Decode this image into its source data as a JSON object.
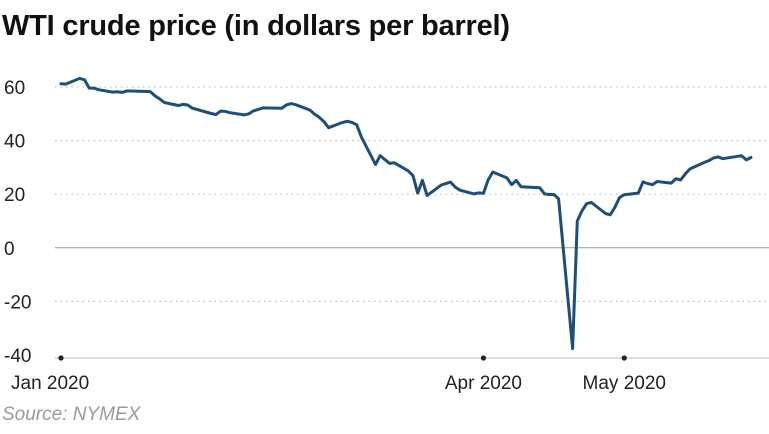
{
  "title": "WTI crude price (in dollars per barrel)",
  "source": "Source: NYMEX",
  "colors": {
    "line": "#1f4e79",
    "grid": "#bdbdbd",
    "zero": "#9a9a9a",
    "text": "#222222"
  },
  "chart_data": {
    "type": "line",
    "title": "WTI crude price (in dollars per barrel)",
    "xlabel": "",
    "ylabel": "",
    "ylim": [
      -40,
      60
    ],
    "yticks": [
      60,
      40,
      20,
      0,
      -20,
      -40
    ],
    "ytick_labels": [
      "60",
      "40",
      "20",
      "0",
      "-20",
      "-40"
    ],
    "xticks": [
      "2020-01-02",
      "2020-04-01",
      "2020-05-01"
    ],
    "xtick_labels": [
      "Jan 2020",
      "Apr 2020",
      "May 2020"
    ],
    "xlim": [
      "2020-01-02",
      "2020-05-28"
    ],
    "grid": true,
    "series": [
      {
        "x": [
          "2020-01-02",
          "2020-01-03",
          "2020-01-06",
          "2020-01-07",
          "2020-01-08",
          "2020-01-09",
          "2020-01-10",
          "2020-01-13",
          "2020-01-14",
          "2020-01-15",
          "2020-01-16",
          "2020-01-17",
          "2020-01-21",
          "2020-01-22",
          "2020-01-23",
          "2020-01-24",
          "2020-01-27",
          "2020-01-28",
          "2020-01-29",
          "2020-01-30",
          "2020-01-31",
          "2020-02-03",
          "2020-02-04",
          "2020-02-05",
          "2020-02-06",
          "2020-02-07",
          "2020-02-10",
          "2020-02-11",
          "2020-02-12",
          "2020-02-13",
          "2020-02-14",
          "2020-02-18",
          "2020-02-19",
          "2020-02-20",
          "2020-02-21",
          "2020-02-24",
          "2020-02-25",
          "2020-02-26",
          "2020-02-27",
          "2020-02-28",
          "2020-03-02",
          "2020-03-03",
          "2020-03-04",
          "2020-03-05",
          "2020-03-06",
          "2020-03-09",
          "2020-03-10",
          "2020-03-11",
          "2020-03-12",
          "2020-03-13",
          "2020-03-16",
          "2020-03-17",
          "2020-03-18",
          "2020-03-19",
          "2020-03-20",
          "2020-03-23",
          "2020-03-24",
          "2020-03-25",
          "2020-03-26",
          "2020-03-27",
          "2020-03-30",
          "2020-03-31",
          "2020-04-01",
          "2020-04-02",
          "2020-04-03",
          "2020-04-06",
          "2020-04-07",
          "2020-04-08",
          "2020-04-09",
          "2020-04-13",
          "2020-04-14",
          "2020-04-15",
          "2020-04-16",
          "2020-04-17",
          "2020-04-20",
          "2020-04-21",
          "2020-04-22",
          "2020-04-23",
          "2020-04-24",
          "2020-04-27",
          "2020-04-28",
          "2020-04-29",
          "2020-04-30",
          "2020-05-01",
          "2020-05-04",
          "2020-05-05",
          "2020-05-06",
          "2020-05-07",
          "2020-05-08",
          "2020-05-11",
          "2020-05-12",
          "2020-05-13",
          "2020-05-14",
          "2020-05-15",
          "2020-05-18",
          "2020-05-19",
          "2020-05-20",
          "2020-05-21",
          "2020-05-22",
          "2020-05-26",
          "2020-05-27",
          "2020-05-28"
        ],
        "y": [
          61.2,
          61.1,
          63.2,
          62.7,
          59.6,
          59.6,
          59.0,
          58.1,
          58.2,
          58.0,
          58.5,
          58.5,
          58.3,
          56.7,
          55.6,
          54.2,
          53.1,
          53.5,
          53.3,
          52.1,
          51.6,
          50.1,
          49.7,
          51.0,
          50.9,
          50.4,
          49.6,
          50.0,
          51.1,
          51.6,
          52.2,
          52.1,
          53.3,
          53.8,
          53.4,
          51.4,
          49.9,
          48.7,
          47.1,
          44.8,
          46.8,
          47.2,
          46.8,
          45.9,
          41.3,
          31.1,
          34.4,
          32.9,
          31.5,
          31.7,
          28.7,
          26.9,
          20.4,
          25.2,
          19.5,
          23.4,
          24.0,
          24.5,
          22.6,
          21.5,
          20.1,
          20.5,
          20.3,
          25.3,
          28.3,
          26.1,
          23.6,
          25.1,
          22.8,
          22.4,
          20.1,
          19.9,
          19.9,
          18.3,
          -37.6,
          10.0,
          13.8,
          16.5,
          16.9,
          12.8,
          12.3,
          15.1,
          18.8,
          19.8,
          20.4,
          24.6,
          23.99,
          23.55,
          24.74,
          24.14,
          25.78,
          25.29,
          27.56,
          29.43,
          31.82,
          32.5,
          33.49,
          33.92,
          33.25,
          34.35,
          32.81,
          33.71
        ]
      }
    ]
  }
}
